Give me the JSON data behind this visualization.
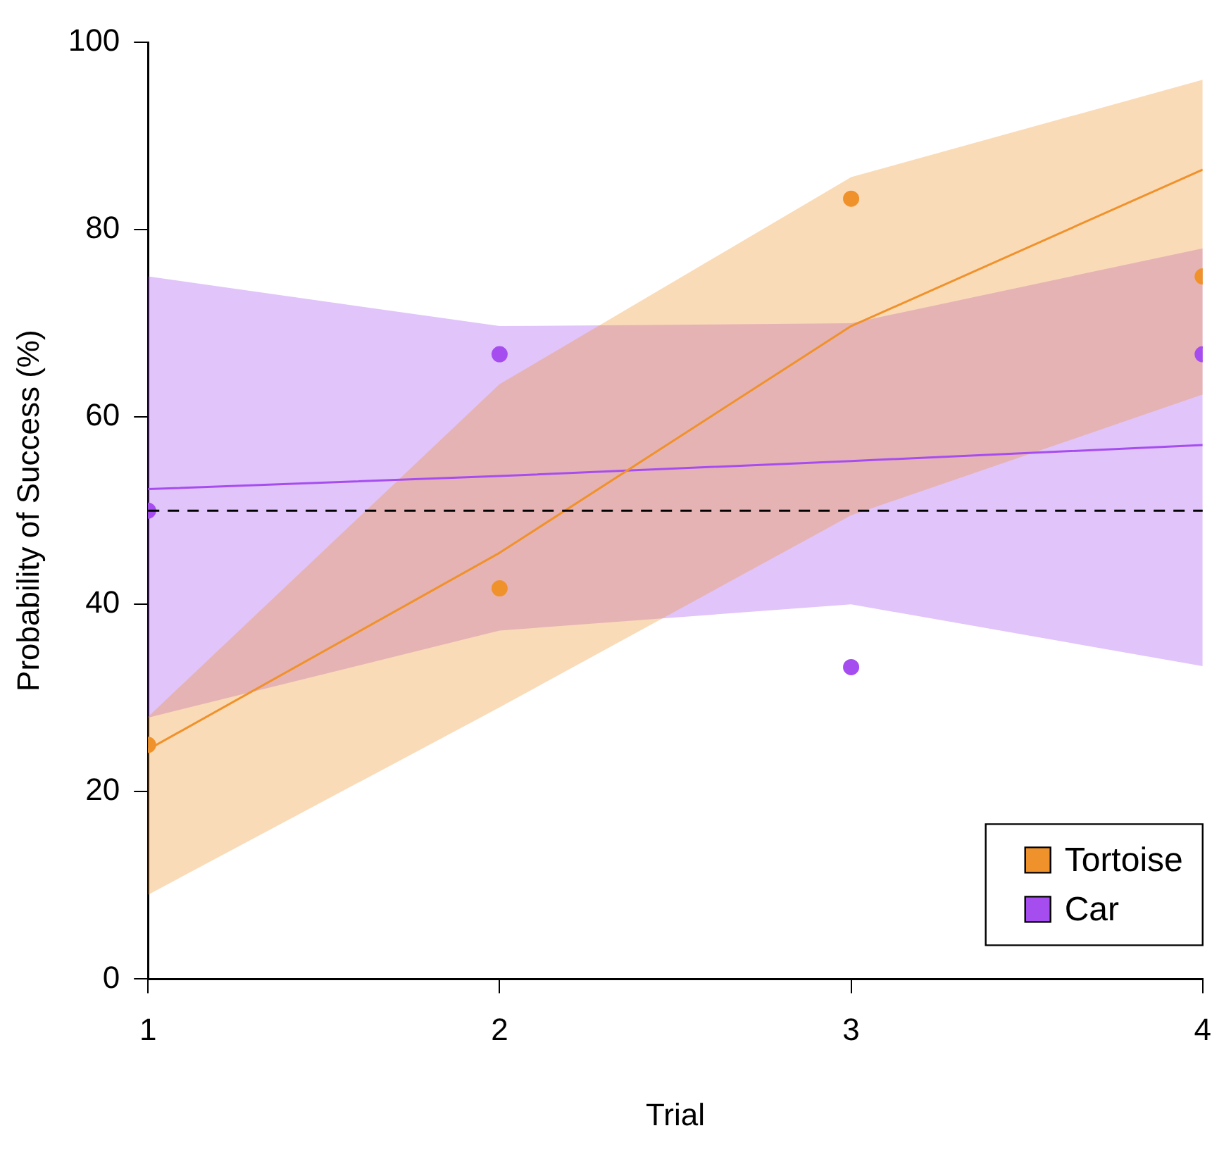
{
  "chart_data": {
    "type": "line",
    "xlabel": "Trial",
    "ylabel": "Probability of Success (%)",
    "x": [
      1,
      2,
      3,
      4
    ],
    "xlim": [
      1,
      4
    ],
    "xticks": [
      1,
      2,
      3,
      4
    ],
    "ylim": [
      0,
      100
    ],
    "yticks": [
      0,
      20,
      40,
      60,
      80,
      100
    ],
    "grid": false,
    "legend": "bottom right",
    "series": [
      {
        "name": "Tortoise",
        "color": "#f0922b",
        "marker": "none",
        "values": [
          24.5,
          45.5,
          69.7,
          86.4
        ],
        "lower": [
          9,
          29,
          49.5,
          62.4
        ],
        "upper": [
          28,
          63.5,
          85.6,
          96
        ]
      },
      {
        "name": "Car",
        "color": "#a64df0",
        "marker": "none",
        "values": [
          52.3,
          53.7,
          55.3,
          57
        ],
        "lower": [
          27.9,
          37.2,
          40,
          33.4
        ],
        "upper": [
          75,
          69.7,
          70,
          78
        ]
      },
      {
        "type": "scatter",
        "color": "#f0922b",
        "marker": "circle",
        "values": [
          25,
          41.7,
          83.3,
          75
        ]
      },
      {
        "type": "scatter",
        "color": "#a64df0",
        "marker": "circle",
        "values": [
          50,
          66.7,
          33.3,
          66.7
        ]
      }
    ],
    "ref_lines": [
      {
        "axis": "y",
        "value": 50,
        "color": "#000000",
        "line_style": "dashed"
      }
    ]
  }
}
